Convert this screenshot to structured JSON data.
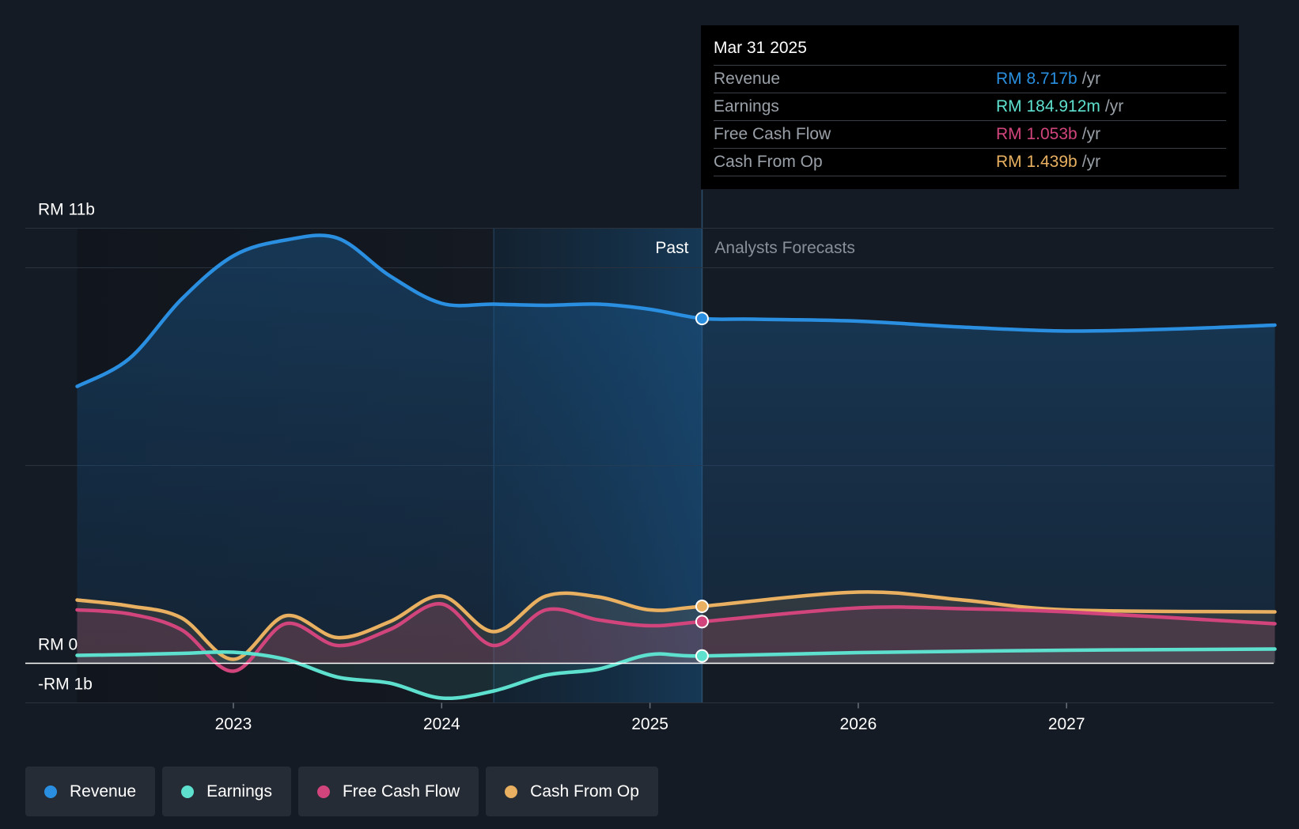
{
  "chart_data": {
    "type": "area",
    "title": "",
    "x_axis": {
      "ticks": [
        "2023",
        "2024",
        "2025",
        "2026",
        "2027"
      ]
    },
    "y_axis": {
      "ticks": [
        {
          "label": "RM 11b",
          "value": 11
        },
        {
          "label": "RM 0",
          "value": 0
        },
        {
          "label": "-RM 1b",
          "value": -1
        }
      ],
      "ylim": [
        -1,
        11
      ],
      "unit": "RM b"
    },
    "regions": {
      "past_label": "Past",
      "forecast_label": "Analysts Forecasts",
      "divider_date": 2025.25
    },
    "colors": {
      "revenue": "#2a8fe0",
      "earnings": "#5ee0cf",
      "free_cash_flow": "#d1457c",
      "cash_from_op": "#e8b060"
    },
    "series": [
      {
        "name": "Revenue",
        "key": "revenue",
        "points": [
          [
            2022.25,
            7.0
          ],
          [
            2022.5,
            7.7
          ],
          [
            2022.75,
            9.2
          ],
          [
            2023.0,
            10.3
          ],
          [
            2023.25,
            10.7
          ],
          [
            2023.5,
            10.75
          ],
          [
            2023.75,
            9.8
          ],
          [
            2024.0,
            9.1
          ],
          [
            2024.25,
            9.08
          ],
          [
            2024.5,
            9.05
          ],
          [
            2024.75,
            9.08
          ],
          [
            2025.0,
            8.95
          ],
          [
            2025.25,
            8.717
          ],
          [
            2025.5,
            8.7
          ],
          [
            2026.0,
            8.65
          ],
          [
            2026.5,
            8.5
          ],
          [
            2027.0,
            8.4
          ],
          [
            2027.5,
            8.45
          ],
          [
            2028.0,
            8.55
          ]
        ]
      },
      {
        "name": "Cash From Op",
        "key": "cash_from_op",
        "points": [
          [
            2022.25,
            1.6
          ],
          [
            2022.5,
            1.45
          ],
          [
            2022.75,
            1.15
          ],
          [
            2023.0,
            0.1
          ],
          [
            2023.25,
            1.2
          ],
          [
            2023.5,
            0.65
          ],
          [
            2023.75,
            1.05
          ],
          [
            2024.0,
            1.7
          ],
          [
            2024.25,
            0.8
          ],
          [
            2024.5,
            1.7
          ],
          [
            2024.75,
            1.68
          ],
          [
            2025.0,
            1.35
          ],
          [
            2025.25,
            1.439
          ],
          [
            2026.0,
            1.8
          ],
          [
            2026.5,
            1.6
          ],
          [
            2027.0,
            1.35
          ],
          [
            2028.0,
            1.3
          ]
        ]
      },
      {
        "name": "Free Cash Flow",
        "key": "free_cash_flow",
        "points": [
          [
            2022.25,
            1.35
          ],
          [
            2022.5,
            1.25
          ],
          [
            2022.75,
            0.85
          ],
          [
            2023.0,
            -0.2
          ],
          [
            2023.25,
            1.0
          ],
          [
            2023.5,
            0.45
          ],
          [
            2023.75,
            0.85
          ],
          [
            2024.0,
            1.5
          ],
          [
            2024.25,
            0.45
          ],
          [
            2024.5,
            1.35
          ],
          [
            2024.75,
            1.1
          ],
          [
            2025.0,
            0.95
          ],
          [
            2025.25,
            1.053
          ],
          [
            2026.0,
            1.4
          ],
          [
            2026.5,
            1.38
          ],
          [
            2027.0,
            1.3
          ],
          [
            2028.0,
            1.0
          ]
        ]
      },
      {
        "name": "Earnings",
        "key": "earnings",
        "points": [
          [
            2022.25,
            0.2
          ],
          [
            2022.5,
            0.22
          ],
          [
            2022.75,
            0.25
          ],
          [
            2023.0,
            0.28
          ],
          [
            2023.25,
            0.1
          ],
          [
            2023.5,
            -0.35
          ],
          [
            2023.75,
            -0.5
          ],
          [
            2024.0,
            -0.88
          ],
          [
            2024.25,
            -0.7
          ],
          [
            2024.5,
            -0.3
          ],
          [
            2024.75,
            -0.15
          ],
          [
            2025.0,
            0.22
          ],
          [
            2025.25,
            0.185
          ],
          [
            2026.0,
            0.27
          ],
          [
            2027.0,
            0.33
          ],
          [
            2028.0,
            0.36
          ]
        ]
      }
    ],
    "tooltip": {
      "date": "Mar 31 2025",
      "rows": [
        {
          "label": "Revenue",
          "value": "RM 8.717b",
          "unit": "/yr",
          "color": "#2a8fe0"
        },
        {
          "label": "Earnings",
          "value": "RM 184.912m",
          "unit": "/yr",
          "color": "#5ee0cf"
        },
        {
          "label": "Free Cash Flow",
          "value": "RM 1.053b",
          "unit": "/yr",
          "color": "#d1457c"
        },
        {
          "label": "Cash From Op",
          "value": "RM 1.439b",
          "unit": "/yr",
          "color": "#e8b060"
        }
      ]
    },
    "legend": [
      {
        "label": "Revenue",
        "color": "#2a8fe0"
      },
      {
        "label": "Earnings",
        "color": "#5ee0cf"
      },
      {
        "label": "Free Cash Flow",
        "color": "#d1457c"
      },
      {
        "label": "Cash From Op",
        "color": "#e8b060"
      }
    ]
  }
}
